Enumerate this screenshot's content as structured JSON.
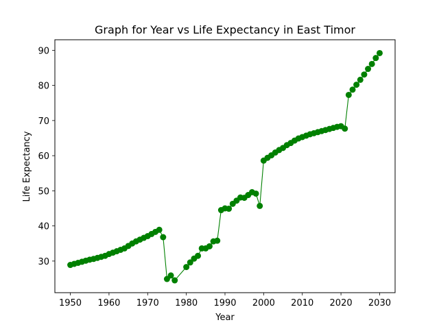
{
  "chart_data": {
    "type": "line",
    "title": "Graph for Year vs Life Expectancy in East Timor",
    "xlabel": "Year",
    "ylabel": "Life Expectancy",
    "xlim": [
      1946,
      2034
    ],
    "ylim": [
      21,
      93
    ],
    "xticks": [
      1950,
      1960,
      1970,
      1980,
      1990,
      2000,
      2010,
      2020,
      2030
    ],
    "yticks": [
      30,
      40,
      50,
      60,
      70,
      80,
      90
    ],
    "grid": false,
    "colors": {
      "series": "#008000"
    },
    "markers": true,
    "series": [
      {
        "x": [
          1950,
          1951,
          1952,
          1953,
          1954,
          1955,
          1956,
          1957,
          1958,
          1959,
          1960,
          1961,
          1962,
          1963,
          1964,
          1965,
          1966,
          1967,
          1968,
          1969,
          1970,
          1971,
          1972,
          1973,
          1974,
          1975,
          1976,
          1977,
          1978,
          1979,
          1980,
          1981,
          1982,
          1983,
          1984,
          1985,
          1986,
          1987,
          1988,
          1989,
          1990,
          1991,
          1992,
          1993,
          1994,
          1995,
          1996,
          1997,
          1998,
          1999,
          2000,
          2001,
          2002,
          2003,
          2004,
          2005,
          2006,
          2007,
          2008,
          2009,
          2010,
          2011,
          2012,
          2013,
          2014,
          2015,
          2016,
          2017,
          2018,
          2019,
          2020,
          2021,
          2022,
          2023,
          2024,
          2025,
          2026,
          2027,
          2028,
          2029,
          2030
        ],
        "y": [
          28.9,
          29.2,
          29.5,
          29.8,
          30.1,
          30.4,
          30.6,
          30.9,
          31.2,
          31.5,
          32.0,
          32.4,
          32.8,
          33.2,
          33.6,
          34.3,
          35.0,
          35.6,
          36.1,
          36.6,
          37.1,
          37.7,
          38.3,
          38.9,
          36.8,
          24.9,
          25.9,
          24.5,
          null,
          null,
          28.3,
          29.6,
          30.7,
          31.5,
          33.6,
          33.6,
          34.2,
          35.6,
          35.8,
          44.5,
          45.0,
          44.9,
          46.3,
          47.2,
          48.1,
          48.0,
          48.8,
          49.6,
          49.2,
          45.7,
          58.6,
          59.4,
          60.1,
          60.9,
          61.6,
          62.2,
          63.0,
          63.6,
          64.3,
          64.9,
          65.3,
          65.7,
          66.1,
          66.4,
          66.7,
          67.0,
          67.3,
          67.6,
          67.9,
          68.2,
          68.4,
          67.7,
          77.3,
          78.8,
          80.2,
          81.6,
          83.1,
          84.7,
          86.1,
          87.8,
          89.2
        ]
      }
    ]
  }
}
